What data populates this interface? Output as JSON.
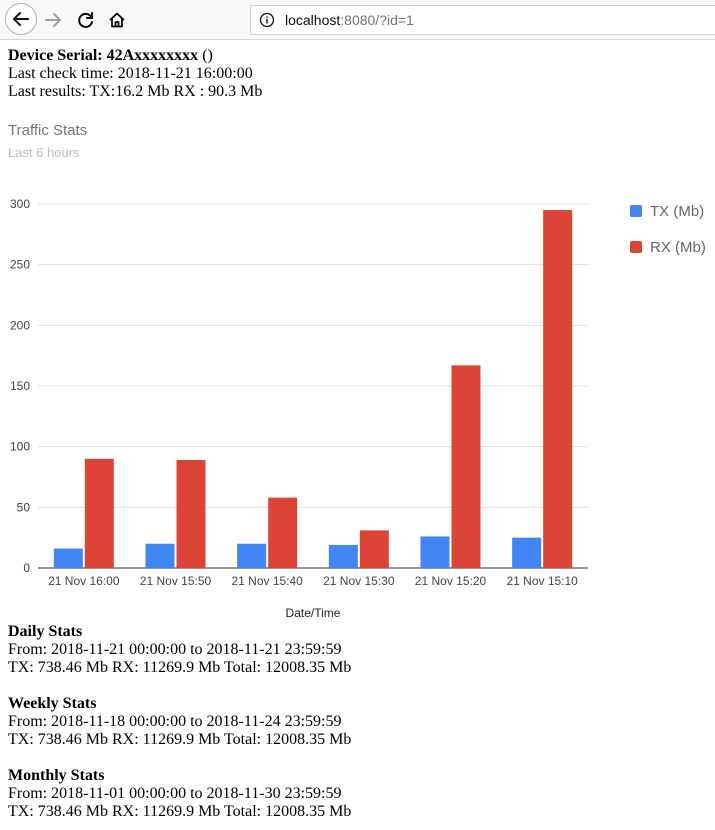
{
  "browser": {
    "url_host": "localhost",
    "url_rest": ":8080/?id=1"
  },
  "device": {
    "serial_label": "Device Serial:",
    "serial_value": "42Axxxxxxxx",
    "serial_suffix": "()",
    "last_check": "Last check time: 2018-11-21 16:00:00",
    "last_results": "Last results: TX:16.2 Mb RX : 90.3 Mb"
  },
  "chart_header": {
    "title": "Traffic Stats",
    "subtitle": "Last 6 hours"
  },
  "chart_data": {
    "type": "bar",
    "categories": [
      "21 Nov 16:00",
      "21 Nov 15:50",
      "21 Nov 15:40",
      "21 Nov 15:30",
      "21 Nov 15:20",
      "21 Nov 15:10"
    ],
    "series": [
      {
        "name": "TX (Mb)",
        "color": "#4285f4",
        "values": [
          16,
          20,
          20,
          19,
          26,
          25
        ]
      },
      {
        "name": "RX (Mb)",
        "color": "#db4437",
        "values": [
          90,
          89,
          58,
          31,
          167,
          295
        ]
      }
    ],
    "xlabel": "Date/Time",
    "ylabel": "",
    "ylim": [
      0,
      300
    ],
    "yticks": [
      0,
      50,
      100,
      150,
      200,
      250,
      300
    ],
    "grid": true,
    "legend": "right"
  },
  "stats": [
    {
      "heading": "Daily Stats",
      "range": "From: 2018-11-21 00:00:00 to 2018-11-21 23:59:59",
      "totals": "TX: 738.46 Mb RX: 11269.9 Mb Total: 12008.35 Mb"
    },
    {
      "heading": "Weekly Stats",
      "range": "From: 2018-11-18 00:00:00 to 2018-11-24 23:59:59",
      "totals": "TX: 738.46 Mb RX: 11269.9 Mb Total: 12008.35 Mb"
    },
    {
      "heading": "Monthly Stats",
      "range": "From: 2018-11-01 00:00:00 to 2018-11-30 23:59:59",
      "totals": "TX: 738.46 Mb RX: 11269.9 Mb Total: 12008.35 Mb"
    }
  ]
}
